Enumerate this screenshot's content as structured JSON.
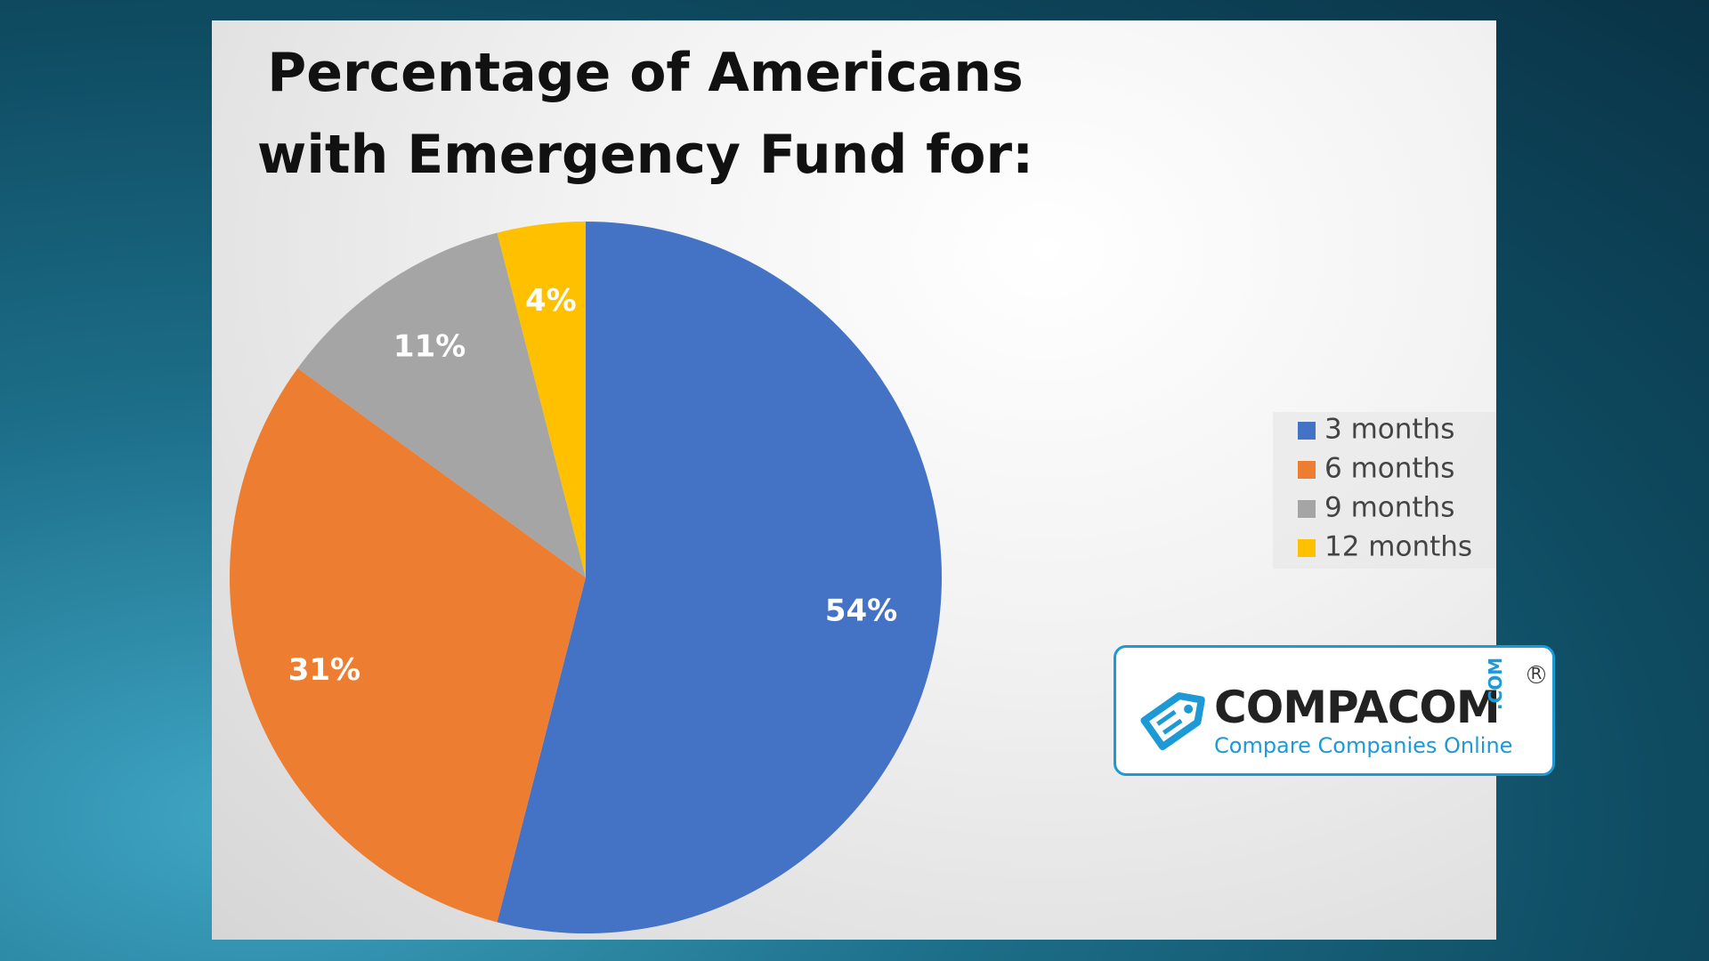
{
  "chart_data": {
    "type": "pie",
    "title": "Percentage of Americans with Emergency Fund for:",
    "categories": [
      "3 months",
      "6 months",
      "9 months",
      "12 months"
    ],
    "values": [
      54,
      31,
      11,
      4
    ],
    "value_labels": [
      "54%",
      "31%",
      "11%",
      "4%"
    ],
    "colors": [
      "#4472c4",
      "#ed7d31",
      "#a5a5a5",
      "#ffc000"
    ],
    "legend": "right"
  },
  "logo": {
    "name": "COMPACOM",
    "tagline": "Compare Companies Online",
    "suffix": ".COM",
    "mark": "R"
  }
}
